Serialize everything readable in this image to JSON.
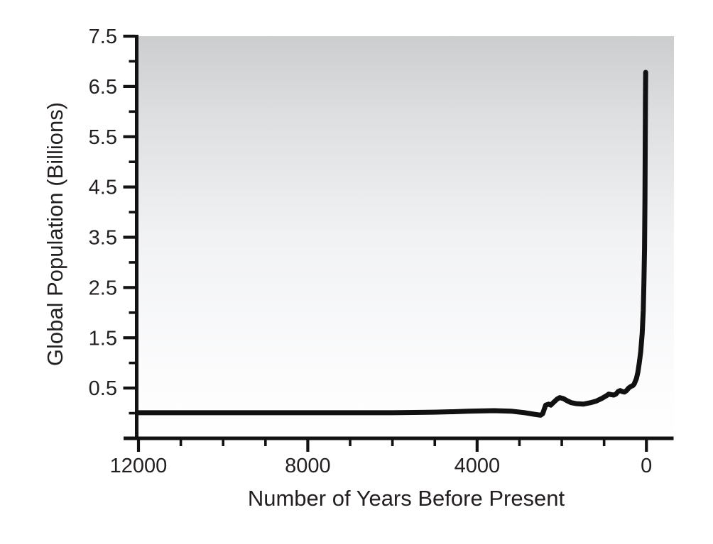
{
  "figure": {
    "background_color": "#ffffff"
  },
  "chart_data": {
    "type": "line",
    "title": "",
    "xlabel": "Number of Years Before Present",
    "ylabel": "Global Population (Billions)",
    "grid": false,
    "legend": null,
    "line_color": "#111111",
    "axis_color": "#121212",
    "label_color": "#231f20",
    "plot_bg_gradient_top": "#cbcdce",
    "plot_bg_gradient_bottom": "#ffffff",
    "xlim_years_before_present": [
      12000,
      -650
    ],
    "ylim_billions": [
      -0.5,
      7.5
    ],
    "x_tick_labels": [
      "12000",
      "8000",
      "4000",
      "0"
    ],
    "x_tick_values": [
      12000,
      8000,
      4000,
      0
    ],
    "x_minor_tick_step": 1000,
    "y_tick_labels": [
      "7.5",
      "6.5",
      "5.5",
      "4.5",
      "3.5",
      "2.5",
      "1.5",
      "0.5"
    ],
    "y_tick_values": [
      7.5,
      6.5,
      5.5,
      4.5,
      3.5,
      2.5,
      1.5,
      0.5
    ],
    "y_minor_tick_values": [
      7,
      6,
      5,
      4,
      3,
      2,
      1,
      0
    ],
    "series": [
      {
        "name": "Global Population",
        "x_units": "years before present",
        "y_units": "billions",
        "points": [
          [
            12000,
            0.01
          ],
          [
            11000,
            0.01
          ],
          [
            10000,
            0.01
          ],
          [
            9000,
            0.01
          ],
          [
            8000,
            0.01
          ],
          [
            7000,
            0.01
          ],
          [
            6000,
            0.01
          ],
          [
            5000,
            0.02
          ],
          [
            4500,
            0.03
          ],
          [
            4200,
            0.04
          ],
          [
            3600,
            0.05
          ],
          [
            3200,
            0.04
          ],
          [
            2870,
            0.01
          ],
          [
            2660,
            -0.02
          ],
          [
            2500,
            -0.04
          ],
          [
            2450,
            -0.01
          ],
          [
            2410,
            0.09
          ],
          [
            2380,
            0.16
          ],
          [
            2310,
            0.18
          ],
          [
            2260,
            0.16
          ],
          [
            2200,
            0.21
          ],
          [
            2110,
            0.28
          ],
          [
            2050,
            0.31
          ],
          [
            1960,
            0.29
          ],
          [
            1880,
            0.25
          ],
          [
            1780,
            0.21
          ],
          [
            1660,
            0.19
          ],
          [
            1490,
            0.18
          ],
          [
            1320,
            0.21
          ],
          [
            1190,
            0.24
          ],
          [
            1040,
            0.3
          ],
          [
            940,
            0.35
          ],
          [
            890,
            0.38
          ],
          [
            840,
            0.37
          ],
          [
            770,
            0.36
          ],
          [
            720,
            0.38
          ],
          [
            670,
            0.43
          ],
          [
            620,
            0.45
          ],
          [
            570,
            0.43
          ],
          [
            520,
            0.42
          ],
          [
            470,
            0.45
          ],
          [
            420,
            0.5
          ],
          [
            370,
            0.53
          ],
          [
            320,
            0.55
          ],
          [
            290,
            0.58
          ],
          [
            235,
            0.69
          ],
          [
            200,
            0.82
          ],
          [
            170,
            0.99
          ],
          [
            135,
            1.22
          ],
          [
            100,
            1.59
          ],
          [
            75,
            2.04
          ],
          [
            60,
            2.58
          ],
          [
            45,
            3.28
          ],
          [
            34,
            4.27
          ],
          [
            27,
            5.41
          ],
          [
            22,
            6.26
          ],
          [
            17,
            6.78
          ]
        ]
      }
    ]
  }
}
